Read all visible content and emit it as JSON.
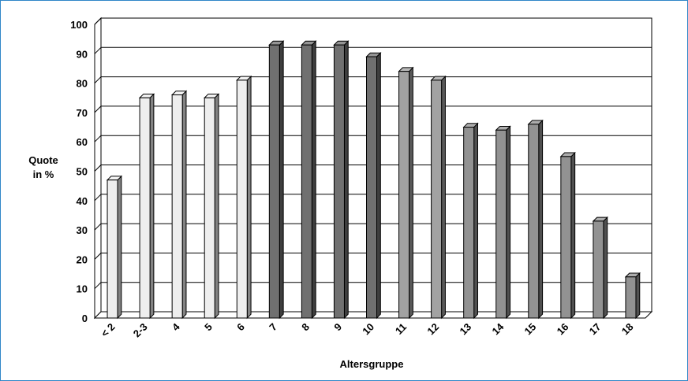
{
  "chart_data": {
    "type": "bar",
    "categories": [
      "< 2",
      "2-3",
      "4",
      "5",
      "6",
      "7",
      "8",
      "9",
      "10",
      "11",
      "12",
      "13",
      "14",
      "15",
      "16",
      "17",
      "18"
    ],
    "values": [
      47,
      75,
      76,
      75,
      81,
      93,
      93,
      93,
      89,
      84,
      81,
      65,
      64,
      66,
      55,
      33,
      14
    ],
    "bar_colors": [
      "#eeeeee",
      "#eeeeee",
      "#eeeeee",
      "#eeeeee",
      "#eeeeee",
      "#707070",
      "#707070",
      "#707070",
      "#707070",
      "#a2a2a2",
      "#a2a2a2",
      "#929292",
      "#929292",
      "#929292",
      "#929292",
      "#929292",
      "#929292"
    ],
    "xlabel": "Altersgruppe",
    "ylabel_lines": [
      "Quote",
      "in %"
    ],
    "ylim": [
      0,
      100
    ],
    "yticks": [
      0,
      10,
      20,
      30,
      40,
      50,
      60,
      70,
      80,
      90,
      100
    ],
    "grid": true,
    "legend": false
  }
}
